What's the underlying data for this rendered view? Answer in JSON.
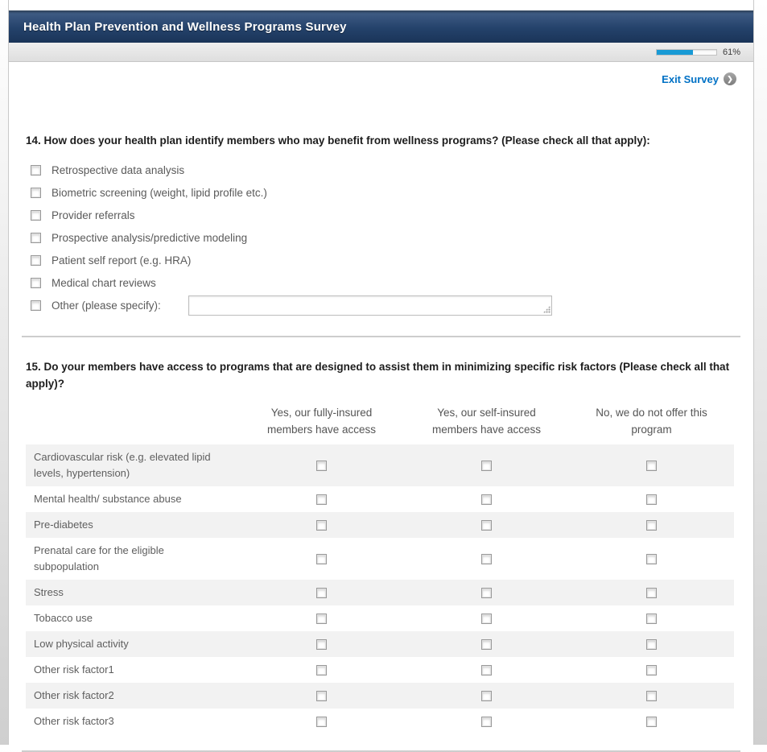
{
  "header": {
    "title": "Health Plan Prevention and Wellness Programs Survey"
  },
  "progress": {
    "percent": 61,
    "label": "61%"
  },
  "exit_link": {
    "label": "Exit Survey"
  },
  "question14": {
    "title": "14. How does your health plan identify members who may benefit from wellness programs? (Please check all that apply):",
    "options": [
      "Retrospective data analysis",
      "Biometric screening (weight, lipid profile etc.)",
      "Provider referrals",
      "Prospective analysis/predictive modeling",
      "Patient self report (e.g. HRA)",
      "Medical chart reviews"
    ],
    "other_option": {
      "label": "Other (please specify):",
      "value": ""
    }
  },
  "question15": {
    "title": "15. Do your members have access to programs that are designed to assist them in minimizing specific risk factors (Please check all that apply)?",
    "columns": [
      "Yes, our fully-insured members have access",
      "Yes, our self-insured members have access",
      "No, we do not offer this program"
    ],
    "rows": [
      "Cardiovascular risk (e.g. elevated lipid levels, hypertension)",
      "Mental health/ substance abuse",
      "Pre-diabetes",
      "Prenatal care for the eligible subpopulation",
      "Stress",
      "Tobacco use",
      "Low physical activity",
      "Other risk factor1",
      "Other risk factor2",
      "Other risk factor3"
    ]
  },
  "colors": {
    "header_navy": "#24426b",
    "progress_blue": "#189ad5",
    "link_blue": "#0071c5",
    "row_stripe": "#f2f2f2"
  }
}
